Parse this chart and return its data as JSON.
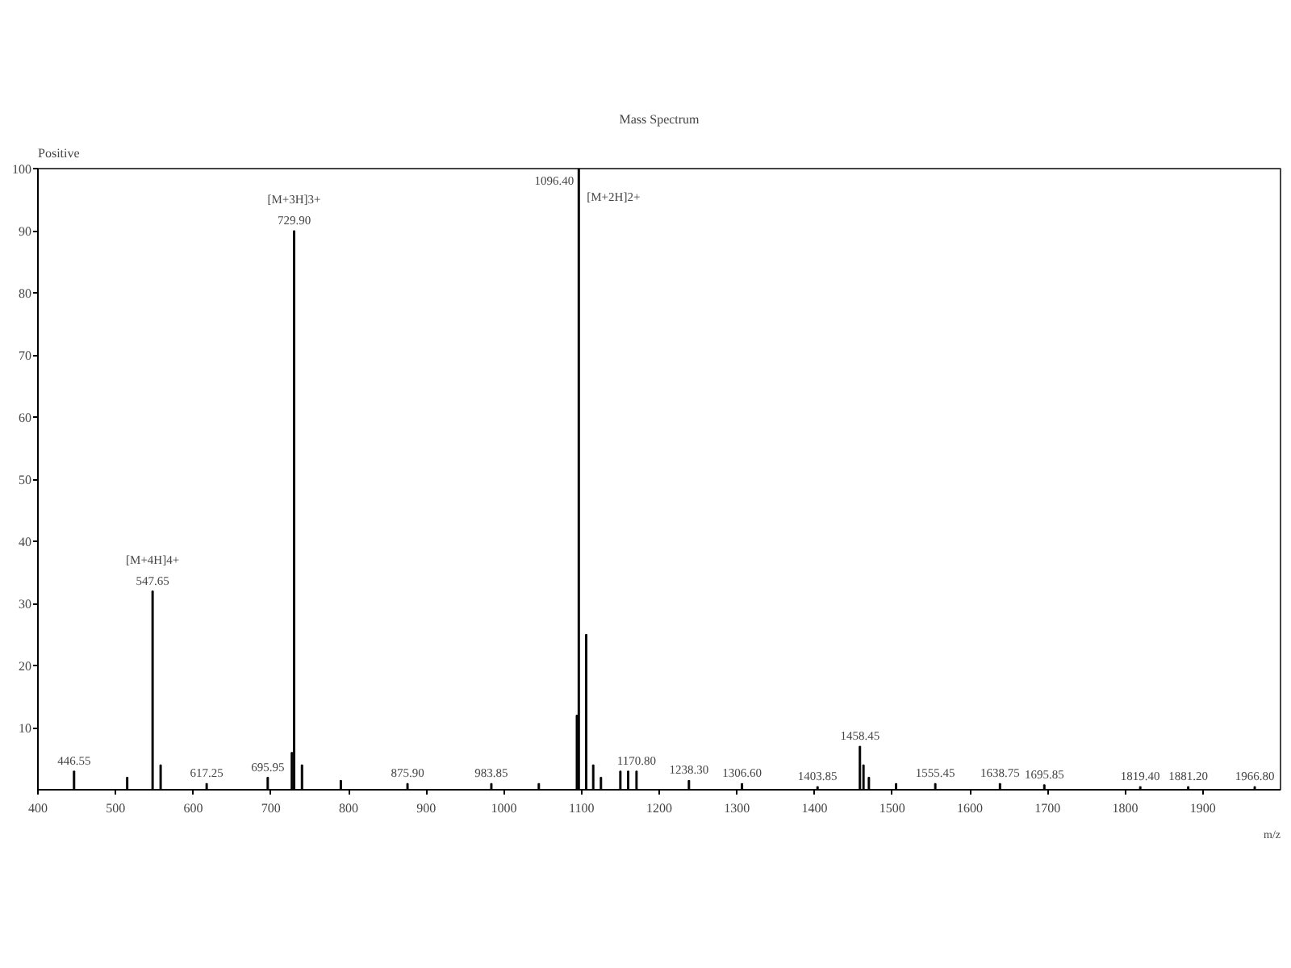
{
  "chart_data": {
    "type": "bar",
    "title": "Mass Spectrum",
    "xlabel": "m/z",
    "color": "#000000",
    "x": [
      446.55,
      515,
      547.65,
      558,
      617.25,
      695.95,
      727,
      729.9,
      740,
      790,
      875.9,
      983.85,
      1045,
      1094,
      1096.4,
      1106,
      1115,
      1125,
      1150,
      1160,
      1170.8,
      1238.3,
      1306.6,
      1403.85,
      1458.45,
      1463,
      1470,
      1505,
      1555.45,
      1638.75,
      1695.85,
      1819.4,
      1881.2,
      1966.8
    ],
    "values": [
      3,
      2,
      32,
      4,
      1,
      2,
      6,
      90,
      4,
      1.5,
      1,
      1,
      1,
      12,
      100,
      25,
      4,
      2,
      3,
      3,
      3,
      1.5,
      1,
      0.5,
      7,
      4,
      2,
      1,
      1,
      1,
      0.8,
      0.5,
      0.5,
      0.5
    ],
    "xlim": [
      400,
      2000
    ],
    "ylim": [
      0,
      100
    ],
    "xticks": [
      400,
      500,
      600,
      700,
      800,
      900,
      1000,
      1100,
      1200,
      1300,
      1400,
      1500,
      1600,
      1700,
      1800,
      1900
    ],
    "yticks": [
      10,
      20,
      30,
      40,
      50,
      60,
      70,
      80,
      90,
      100
    ],
    "grid": false,
    "annotations": [
      "Positive",
      {
        "text": "446.55",
        "x": 446.55,
        "y": 3
      },
      {
        "text": "547.65",
        "x": 547.65,
        "y": 32
      },
      {
        "text": "[M+4H]4+",
        "x": 547.65,
        "y": 32
      },
      {
        "text": "617.25",
        "x": 617.25,
        "y": 1
      },
      {
        "text": "695.95",
        "x": 695.95,
        "y": 2
      },
      {
        "text": "729.90",
        "x": 729.9,
        "y": 90
      },
      {
        "text": "[M+3H]3+",
        "x": 729.9,
        "y": 90
      },
      {
        "text": "875.90",
        "x": 875.9,
        "y": 1
      },
      {
        "text": "983.85",
        "x": 983.85,
        "y": 1
      },
      {
        "text": "1096.40",
        "x": 1096.4,
        "y": 100
      },
      {
        "text": "[M+2H]2+",
        "x": 1096.4,
        "y": 100
      },
      {
        "text": "1170.80",
        "x": 1170.8,
        "y": 3
      },
      {
        "text": "1238.30",
        "x": 1238.3,
        "y": 1.5
      },
      {
        "text": "1306.60",
        "x": 1306.6,
        "y": 1
      },
      {
        "text": "1403.85",
        "x": 1403.85,
        "y": 0.5
      },
      {
        "text": "1458.45",
        "x": 1458.45,
        "y": 7
      },
      {
        "text": "1555.45",
        "x": 1555.45,
        "y": 1
      },
      {
        "text": "1638.75",
        "x": 1638.75,
        "y": 1
      },
      {
        "text": "1695.85",
        "x": 1695.85,
        "y": 0.8
      },
      {
        "text": "1819.40",
        "x": 1819.4,
        "y": 0.5
      },
      {
        "text": "1881.20",
        "x": 1881.2,
        "y": 0.5
      },
      {
        "text": "1966.80",
        "x": 1966.8,
        "y": 0.5
      }
    ]
  }
}
